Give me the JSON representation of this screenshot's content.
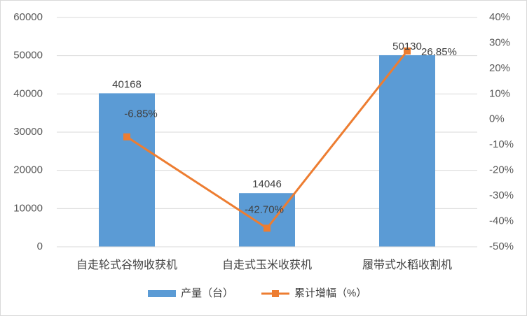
{
  "chart_data": {
    "type": "bar",
    "categories": [
      "自走轮式谷物收获机",
      "自走式玉米收获机",
      "履带式水稻收割机"
    ],
    "series": [
      {
        "name": "产量（台）",
        "chart_type": "bar",
        "axis": "left",
        "values": [
          40168,
          14046,
          50130
        ],
        "value_labels": [
          "40168",
          "14046",
          "50130"
        ],
        "color": "#5B9BD5"
      },
      {
        "name": "累计增幅（%）",
        "chart_type": "line",
        "axis": "right",
        "values": [
          -6.85,
          -42.7,
          26.85
        ],
        "value_labels": [
          "-6.85%",
          "-42.70%",
          "26.85%"
        ],
        "color": "#ED7D31"
      }
    ],
    "y_left": {
      "range": [
        0,
        60000
      ],
      "ticks": [
        0,
        10000,
        20000,
        30000,
        40000,
        50000,
        60000
      ],
      "tick_labels": [
        "0",
        "10000",
        "20000",
        "30000",
        "40000",
        "50000",
        "60000"
      ]
    },
    "y_right": {
      "range": [
        -50,
        40
      ],
      "ticks": [
        -50,
        -40,
        -30,
        -20,
        -10,
        0,
        10,
        20,
        30,
        40
      ],
      "tick_labels": [
        "-50%",
        "-40%",
        "-30%",
        "-20%",
        "-10%",
        "0%",
        "10%",
        "20%",
        "30%",
        "40%"
      ]
    },
    "grid": true,
    "legend_position": "bottom",
    "title": "",
    "xlabel": "",
    "ylabel": ""
  }
}
